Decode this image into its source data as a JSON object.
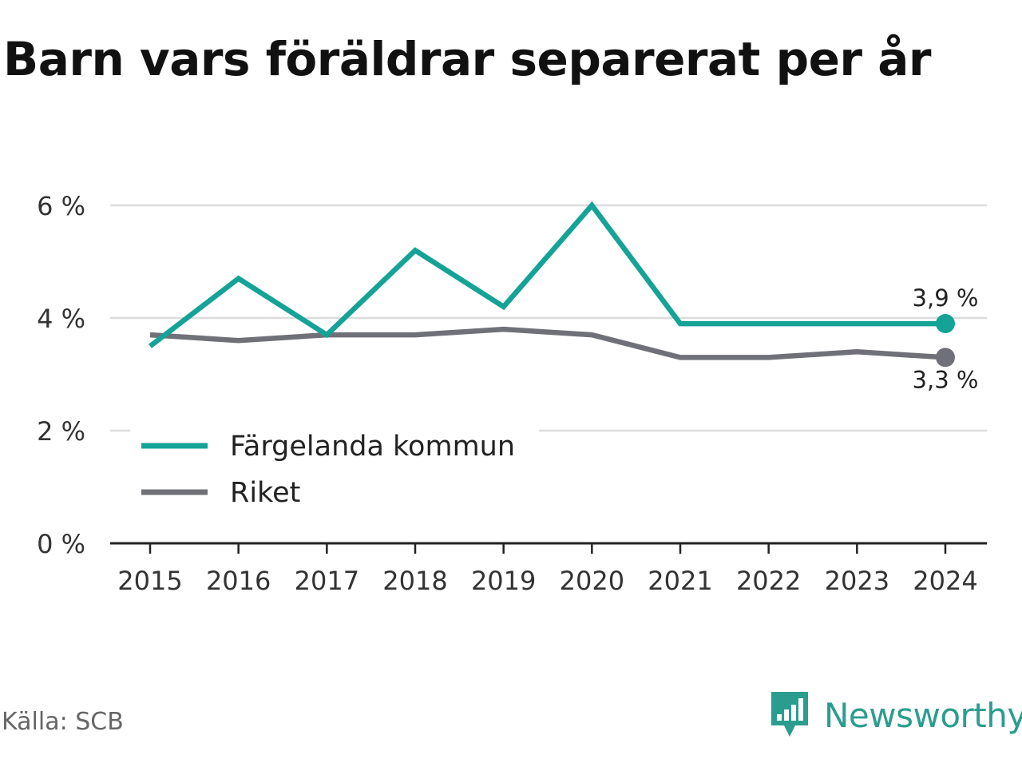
{
  "title": "Barn vars föräldrar separerat per år",
  "source": "Källa: SCB",
  "brand": {
    "name": "Newsworthy",
    "icon": "newsworthy-logo-icon"
  },
  "chart_data": {
    "type": "line",
    "title": "Barn vars föräldrar separerat per år",
    "x": [
      "2015",
      "2016",
      "2017",
      "2018",
      "2019",
      "2020",
      "2021",
      "2022",
      "2023",
      "2024"
    ],
    "y_ticks": [
      {
        "value": 0,
        "label": "0 %"
      },
      {
        "value": 2,
        "label": "2 %"
      },
      {
        "value": 4,
        "label": "4 %"
      },
      {
        "value": 6,
        "label": "6 %"
      }
    ],
    "ylim": [
      0,
      6
    ],
    "grid": true,
    "legend_position": "bottom-left",
    "series": [
      {
        "name": "Färgelanda kommun",
        "color": "#14a396",
        "values": [
          3.5,
          4.7,
          3.7,
          5.2,
          4.2,
          6.0,
          3.9,
          3.9,
          3.9,
          3.9
        ],
        "end_label": "3,9 %"
      },
      {
        "name": "Riket",
        "color": "#707078",
        "values": [
          3.7,
          3.6,
          3.7,
          3.7,
          3.8,
          3.7,
          3.3,
          3.3,
          3.4,
          3.3
        ],
        "end_label": "3,3 %"
      }
    ]
  }
}
